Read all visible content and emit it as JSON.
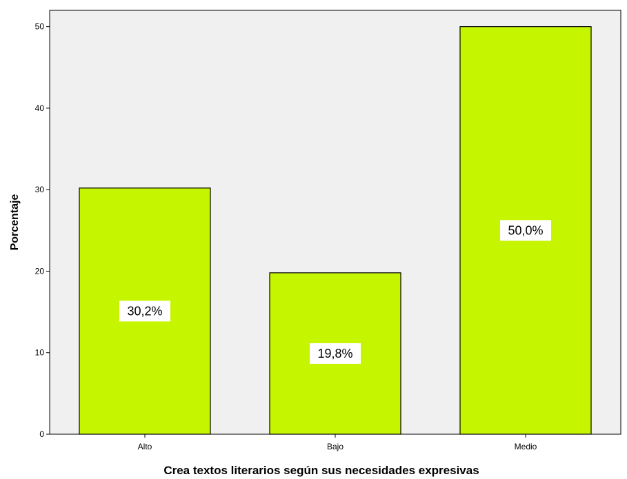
{
  "chart_data": {
    "type": "bar",
    "categories": [
      "Alto",
      "Bajo",
      "Medio"
    ],
    "values": [
      30.2,
      19.8,
      50.0
    ],
    "data_labels": [
      "30,2%",
      "19,8%",
      "50,0%"
    ],
    "xlabel": "Crea textos literarios según sus necesidades expresivas",
    "ylabel": "Porcentaje",
    "ylim": [
      0,
      52
    ],
    "yticks": [
      0,
      10,
      20,
      30,
      40,
      50
    ],
    "grid": false,
    "legend": "none",
    "colors": {
      "bar_fill": "#c6f500",
      "plot_background": "#f0f0f0",
      "axis": "#000000"
    }
  }
}
